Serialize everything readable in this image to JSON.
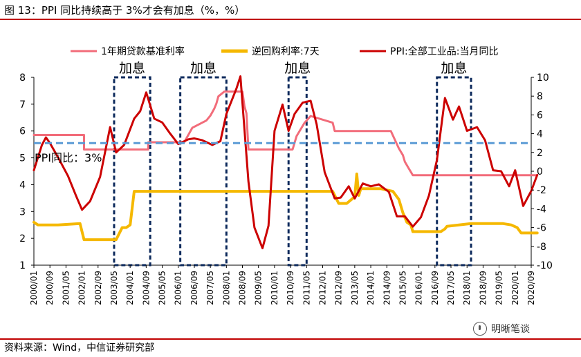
{
  "header": {
    "title": "图 13：PPI 同比持续高于 3%才会有加息（%，%）"
  },
  "footer": {
    "source": "资料来源：Wind，中信证券研究部",
    "watermark": "明晰笔谈",
    "watermark_icon": "wechat-icon"
  },
  "chart_data": {
    "type": "line",
    "title": "PPI 同比持续高于 3%才会有加息（%，%）",
    "x_ticks": [
      "2000/01",
      "2000/09",
      "2001/05",
      "2002/01",
      "2002/09",
      "2003/05",
      "2004/01",
      "2004/09",
      "2005/05",
      "2006/01",
      "2006/09",
      "2007/05",
      "2008/01",
      "2008/09",
      "2009/05",
      "2010/01",
      "2010/09",
      "2011/05",
      "2012/01",
      "2012/09",
      "2013/05",
      "2014/01",
      "2014/09",
      "2015/05",
      "2016/01",
      "2016/09",
      "2017/05",
      "2018/01",
      "2018/09",
      "2019/05",
      "2020/01",
      "2020/09"
    ],
    "left_axis": {
      "ylim": [
        1,
        8
      ],
      "ticks": [
        1,
        2,
        3,
        4,
        5,
        6,
        7,
        8
      ]
    },
    "right_axis": {
      "ylim": [
        -10,
        10
      ],
      "ticks": [
        -10,
        -8,
        -6,
        -4,
        -2,
        0,
        2,
        4,
        6,
        8,
        10
      ]
    },
    "legend_position": "top",
    "series": [
      {
        "name": "1年期贷款基准利率",
        "axis": "left",
        "color": "#f26c7a",
        "x": [
          "2000/01",
          "2002/02",
          "2002/02",
          "2004/10",
          "2004/10",
          "2006/04",
          "2006/08",
          "2007/03",
          "2007/05",
          "2007/07",
          "2007/08",
          "2007/09",
          "2007/12",
          "2008/09",
          "2008/10",
          "2008/11",
          "2008/12",
          "2010/10",
          "2010/12",
          "2011/02",
          "2011/04",
          "2011/07",
          "2012/06",
          "2012/07",
          "2014/11",
          "2015/03",
          "2015/05",
          "2015/06",
          "2015/08",
          "2015/10",
          "2020/12"
        ],
        "y": [
          5.85,
          5.85,
          5.31,
          5.31,
          5.58,
          5.58,
          6.12,
          6.39,
          6.57,
          6.84,
          7.02,
          7.29,
          7.47,
          7.47,
          6.93,
          6.66,
          5.31,
          5.31,
          5.81,
          6.06,
          6.31,
          6.56,
          6.31,
          6.0,
          6.0,
          5.35,
          5.1,
          4.85,
          4.6,
          4.35,
          4.35
        ]
      },
      {
        "name": "逆回购利率:7天",
        "axis": "left",
        "color": "#f5b800",
        "x": [
          "2000/01",
          "2000/03",
          "2001/01",
          "2001/12",
          "2002/02",
          "2003/06",
          "2003/09",
          "2003/11",
          "2004/01",
          "2004/03",
          "2004/05",
          "2012/06",
          "2012/09",
          "2013/01",
          "2013/05",
          "2013/06",
          "2013/07",
          "2013/08",
          "2014/01",
          "2014/06",
          "2014/12",
          "2015/03",
          "2015/05",
          "2015/07",
          "2015/09",
          "2015/10",
          "2016/01",
          "2016/12",
          "2017/02",
          "2017/03",
          "2018/03",
          "2019/07",
          "2019/11",
          "2020/02",
          "2020/04",
          "2020/12"
        ],
        "y": [
          2.6,
          2.5,
          2.5,
          2.55,
          1.95,
          1.95,
          2.4,
          2.4,
          2.5,
          3.75,
          3.75,
          3.75,
          3.3,
          3.3,
          3.55,
          4.4,
          3.6,
          3.85,
          3.85,
          3.85,
          3.75,
          3.45,
          2.95,
          2.6,
          2.5,
          2.25,
          2.25,
          2.25,
          2.35,
          2.45,
          2.55,
          2.55,
          2.5,
          2.4,
          2.2,
          2.2
        ]
      },
      {
        "name": "PPI:全部工业品:当月同比",
        "axis": "right",
        "color": "#cc0000",
        "x": [
          "2000/01",
          "2000/05",
          "2000/07",
          "2000/09",
          "2001/01",
          "2001/06",
          "2001/10",
          "2002/01",
          "2002/05",
          "2002/10",
          "2003/03",
          "2003/06",
          "2003/10",
          "2004/03",
          "2004/06",
          "2004/09",
          "2005/01",
          "2005/05",
          "2005/09",
          "2006/01",
          "2006/06",
          "2006/09",
          "2007/01",
          "2007/06",
          "2007/10",
          "2008/01",
          "2008/06",
          "2008/08",
          "2008/12",
          "2009/03",
          "2009/07",
          "2009/10",
          "2010/01",
          "2010/05",
          "2010/08",
          "2010/11",
          "2011/03",
          "2011/07",
          "2011/10",
          "2012/02",
          "2012/07",
          "2012/10",
          "2013/02",
          "2013/05",
          "2013/09",
          "2014/01",
          "2014/05",
          "2014/10",
          "2015/02",
          "2015/06",
          "2015/10",
          "2016/02",
          "2016/06",
          "2016/10",
          "2017/02",
          "2017/06",
          "2017/09",
          "2018/01",
          "2018/06",
          "2018/10",
          "2019/02",
          "2019/06",
          "2019/10",
          "2020/01",
          "2020/05",
          "2020/09",
          "2020/12"
        ],
        "y": [
          0.1,
          2.8,
          3.6,
          3.0,
          1.5,
          -0.5,
          -2.6,
          -4.1,
          -3.2,
          -0.6,
          4.7,
          2.0,
          2.8,
          5.6,
          6.4,
          8.4,
          5.6,
          5.2,
          4.0,
          2.9,
          3.4,
          3.5,
          3.3,
          2.8,
          3.2,
          6.1,
          8.8,
          10.1,
          -1.1,
          -6.0,
          -8.2,
          -5.8,
          4.3,
          7.1,
          4.3,
          6.1,
          7.3,
          7.5,
          5.0,
          -0.1,
          -2.9,
          -2.8,
          -1.6,
          -2.9,
          -1.3,
          -1.6,
          -1.4,
          -2.2,
          -4.8,
          -4.8,
          -5.9,
          -4.9,
          -2.6,
          1.2,
          7.8,
          5.5,
          6.9,
          4.3,
          4.7,
          3.3,
          0.1,
          0.0,
          -1.6,
          0.1,
          -3.7,
          -2.1,
          -0.4
        ]
      }
    ],
    "threshold": {
      "axis": "right",
      "value": 3,
      "color": "#5b9bd5",
      "label": "PPI同比：3%"
    },
    "annotations": [
      {
        "label": "加息",
        "start": "2003/05",
        "end": "2004/11"
      },
      {
        "label": "加息",
        "start": "2006/02",
        "end": "2008/01"
      },
      {
        "label": "加息",
        "start": "2010/08",
        "end": "2011/05"
      },
      {
        "label": "加息",
        "start": "2016/10",
        "end": "2018/03"
      }
    ]
  }
}
